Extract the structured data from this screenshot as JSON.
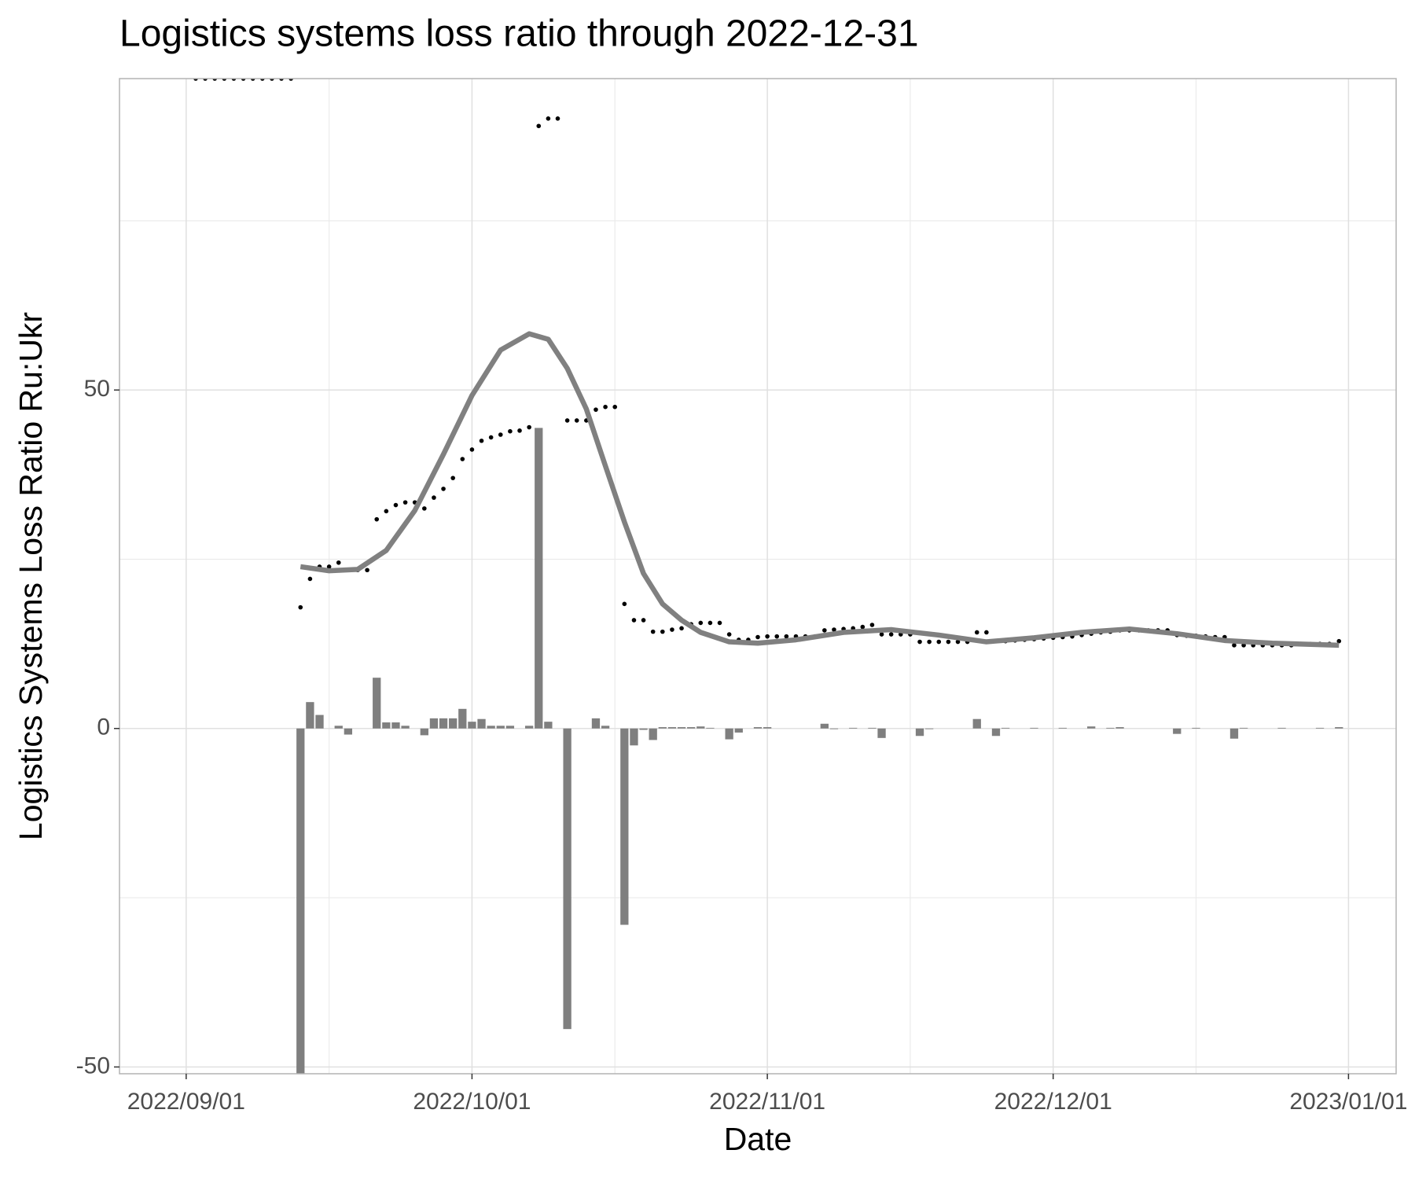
{
  "chart_data": {
    "type": "combo",
    "title": "Logistics systems loss ratio through 2022-12-31",
    "x_label": "Date",
    "y_label": "Logistics Systems Loss Ratio Ru:Ukr",
    "xlim": [
      "2022-08-25",
      "2023-01-06"
    ],
    "xticks": [
      {
        "value": "2022-09-01",
        "label": "2022/09/01"
      },
      {
        "value": "2022-10-01",
        "label": "2022/10/01"
      },
      {
        "value": "2022-11-01",
        "label": "2022/11/01"
      },
      {
        "value": "2022-12-01",
        "label": "2022/12/01"
      },
      {
        "value": "2023-01-01",
        "label": "2023/01/01"
      }
    ],
    "x_minor_grid": [
      "2022-09-16",
      "2022-10-16",
      "2022-11-16",
      "2022-12-16"
    ],
    "ylim": [
      -51,
      96
    ],
    "yticks": [
      -50,
      0,
      50
    ],
    "y_minor_grid": [
      -25,
      25,
      75
    ],
    "grid": true,
    "series": [
      {
        "type": "bar",
        "color": "#7f7f7f",
        "x": [
          "2022-09-13",
          "2022-09-14",
          "2022-09-15",
          "2022-09-17",
          "2022-09-18",
          "2022-09-21",
          "2022-09-22",
          "2022-09-23",
          "2022-09-24",
          "2022-09-26",
          "2022-09-27",
          "2022-09-28",
          "2022-09-29",
          "2022-09-30",
          "2022-10-01",
          "2022-10-02",
          "2022-10-03",
          "2022-10-04",
          "2022-10-05",
          "2022-10-07",
          "2022-10-08",
          "2022-10-09",
          "2022-10-11",
          "2022-10-14",
          "2022-10-15",
          "2022-10-17",
          "2022-10-18",
          "2022-10-19",
          "2022-10-20",
          "2022-10-21",
          "2022-10-22",
          "2022-10-23",
          "2022-10-24",
          "2022-10-25",
          "2022-10-26",
          "2022-10-28",
          "2022-10-29",
          "2022-10-31",
          "2022-11-01",
          "2022-11-07",
          "2022-11-08",
          "2022-11-10",
          "2022-11-12",
          "2022-11-13",
          "2022-11-17",
          "2022-11-18",
          "2022-11-23",
          "2022-11-25",
          "2022-11-26",
          "2022-11-29",
          "2022-12-02",
          "2022-12-05",
          "2022-12-07",
          "2022-12-08",
          "2022-12-14",
          "2022-12-16",
          "2022-12-20",
          "2022-12-21",
          "2022-12-25",
          "2022-12-29",
          "2022-12-31"
        ],
        "values": [
          -51,
          3.9,
          2,
          0.4,
          -0.9,
          7.5,
          0.9,
          0.9,
          0.4,
          -1,
          1.5,
          1.5,
          1.5,
          2.9,
          1,
          1.4,
          0.4,
          0.4,
          0.4,
          0.4,
          44.4,
          1,
          -44.4,
          1.5,
          0.4,
          -29,
          -2.5,
          -0.2,
          -1.7,
          0.2,
          0.2,
          0.2,
          0.2,
          0.3,
          0.1,
          -1.6,
          -0.6,
          0.2,
          0.2,
          0.7,
          -0.1,
          0.1,
          0.1,
          -1.4,
          -1.1,
          -0.1,
          1.4,
          -1.1,
          0.1,
          0.1,
          0.1,
          0.3,
          0.1,
          0.2,
          -0.8,
          0.1,
          -1.5,
          0.1,
          0.1,
          0.1,
          0.2
        ]
      },
      {
        "type": "scatter",
        "color": "#000000",
        "x": [
          "2022-09-02",
          "2022-09-03",
          "2022-09-04",
          "2022-09-05",
          "2022-09-06",
          "2022-09-07",
          "2022-09-08",
          "2022-09-09",
          "2022-09-10",
          "2022-09-11",
          "2022-09-12",
          "2022-09-13",
          "2022-09-14",
          "2022-09-15",
          "2022-09-16",
          "2022-09-17",
          "2022-09-18",
          "2022-09-19",
          "2022-09-20",
          "2022-09-21",
          "2022-09-22",
          "2022-09-23",
          "2022-09-24",
          "2022-09-25",
          "2022-09-26",
          "2022-09-27",
          "2022-09-28",
          "2022-09-29",
          "2022-09-30",
          "2022-10-01",
          "2022-10-02",
          "2022-10-03",
          "2022-10-04",
          "2022-10-05",
          "2022-10-06",
          "2022-10-07",
          "2022-10-08",
          "2022-10-09",
          "2022-10-10",
          "2022-10-11",
          "2022-10-12",
          "2022-10-13",
          "2022-10-14",
          "2022-10-15",
          "2022-10-16",
          "2022-10-17",
          "2022-10-18",
          "2022-10-19",
          "2022-10-20",
          "2022-10-21",
          "2022-10-22",
          "2022-10-23",
          "2022-10-24",
          "2022-10-25",
          "2022-10-26",
          "2022-10-27",
          "2022-10-28",
          "2022-10-29",
          "2022-10-30",
          "2022-10-31",
          "2022-11-01",
          "2022-11-02",
          "2022-11-03",
          "2022-11-04",
          "2022-11-05",
          "2022-11-06",
          "2022-11-07",
          "2022-11-08",
          "2022-11-09",
          "2022-11-10",
          "2022-11-11",
          "2022-11-12",
          "2022-11-13",
          "2022-11-14",
          "2022-11-15",
          "2022-11-16",
          "2022-11-17",
          "2022-11-18",
          "2022-11-19",
          "2022-11-20",
          "2022-11-21",
          "2022-11-22",
          "2022-11-23",
          "2022-11-24",
          "2022-11-25",
          "2022-11-26",
          "2022-11-27",
          "2022-11-28",
          "2022-11-29",
          "2022-11-30",
          "2022-12-01",
          "2022-12-02",
          "2022-12-03",
          "2022-12-04",
          "2022-12-05",
          "2022-12-06",
          "2022-12-07",
          "2022-12-08",
          "2022-12-09",
          "2022-12-10",
          "2022-12-11",
          "2022-12-12",
          "2022-12-13",
          "2022-12-14",
          "2022-12-15",
          "2022-12-16",
          "2022-12-17",
          "2022-12-18",
          "2022-12-19",
          "2022-12-20",
          "2022-12-21",
          "2022-12-22",
          "2022-12-23",
          "2022-12-24",
          "2022-12-25",
          "2022-12-26",
          "2022-12-27",
          "2022-12-28",
          "2022-12-29",
          "2022-12-30",
          "2022-12-31"
        ],
        "values": [
          96,
          96,
          96,
          96,
          96,
          96,
          96,
          96,
          96,
          96,
          96,
          17.9,
          22.1,
          23.9,
          23.9,
          24.5,
          23.4,
          23.4,
          23.4,
          30.9,
          32.1,
          33,
          33.4,
          33.4,
          32.5,
          34.1,
          35.4,
          37,
          39.8,
          41.2,
          42.5,
          43,
          43.4,
          43.9,
          44,
          44.5,
          89,
          90.1,
          90.1,
          45.5,
          45.5,
          45.5,
          47.1,
          47.5,
          47.5,
          18.4,
          16,
          16,
          14.3,
          14.3,
          14.6,
          14.8,
          15.4,
          15.6,
          15.6,
          15.6,
          13.9,
          13.1,
          13.1,
          13.5,
          13.6,
          13.6,
          13.6,
          13.6,
          13.6,
          13.6,
          14.5,
          14.6,
          14.7,
          14.8,
          15,
          15.3,
          13.9,
          13.9,
          13.9,
          13.9,
          12.8,
          12.8,
          12.8,
          12.8,
          12.8,
          12.8,
          14.2,
          14.2,
          12.9,
          12.9,
          13,
          13.1,
          13.2,
          13.3,
          13.4,
          13.5,
          13.6,
          13.8,
          14,
          14.2,
          14.3,
          14.5,
          14.5,
          14.5,
          14.5,
          14.5,
          14.5,
          13.8,
          13.7,
          13.7,
          13.6,
          13.5,
          13.5,
          12.3,
          12.3,
          12.3,
          12.3,
          12.3,
          12.3,
          12.3,
          12.5,
          12.5,
          12.5,
          12.5,
          12.9
        ]
      },
      {
        "type": "line",
        "color": "#808080",
        "x": [
          "2022-09-13",
          "2022-09-16",
          "2022-09-19",
          "2022-09-22",
          "2022-09-25",
          "2022-09-28",
          "2022-10-01",
          "2022-10-04",
          "2022-10-07",
          "2022-10-09",
          "2022-10-11",
          "2022-10-13",
          "2022-10-15",
          "2022-10-17",
          "2022-10-19",
          "2022-10-21",
          "2022-10-23",
          "2022-10-25",
          "2022-10-28",
          "2022-10-31",
          "2022-11-04",
          "2022-11-09",
          "2022-11-14",
          "2022-11-19",
          "2022-11-24",
          "2022-11-29",
          "2022-12-04",
          "2022-12-09",
          "2022-12-14",
          "2022-12-19",
          "2022-12-24",
          "2022-12-31"
        ],
        "values": [
          23.9,
          23.3,
          23.5,
          26.3,
          32.2,
          40.5,
          49.2,
          55.9,
          58.3,
          57.5,
          53.2,
          47.2,
          38.8,
          30.5,
          22.9,
          18.4,
          16,
          14.2,
          12.8,
          12.6,
          13.1,
          14.2,
          14.6,
          13.8,
          12.8,
          13.4,
          14.2,
          14.7,
          14,
          13,
          12.6,
          12.3
        ]
      }
    ]
  }
}
